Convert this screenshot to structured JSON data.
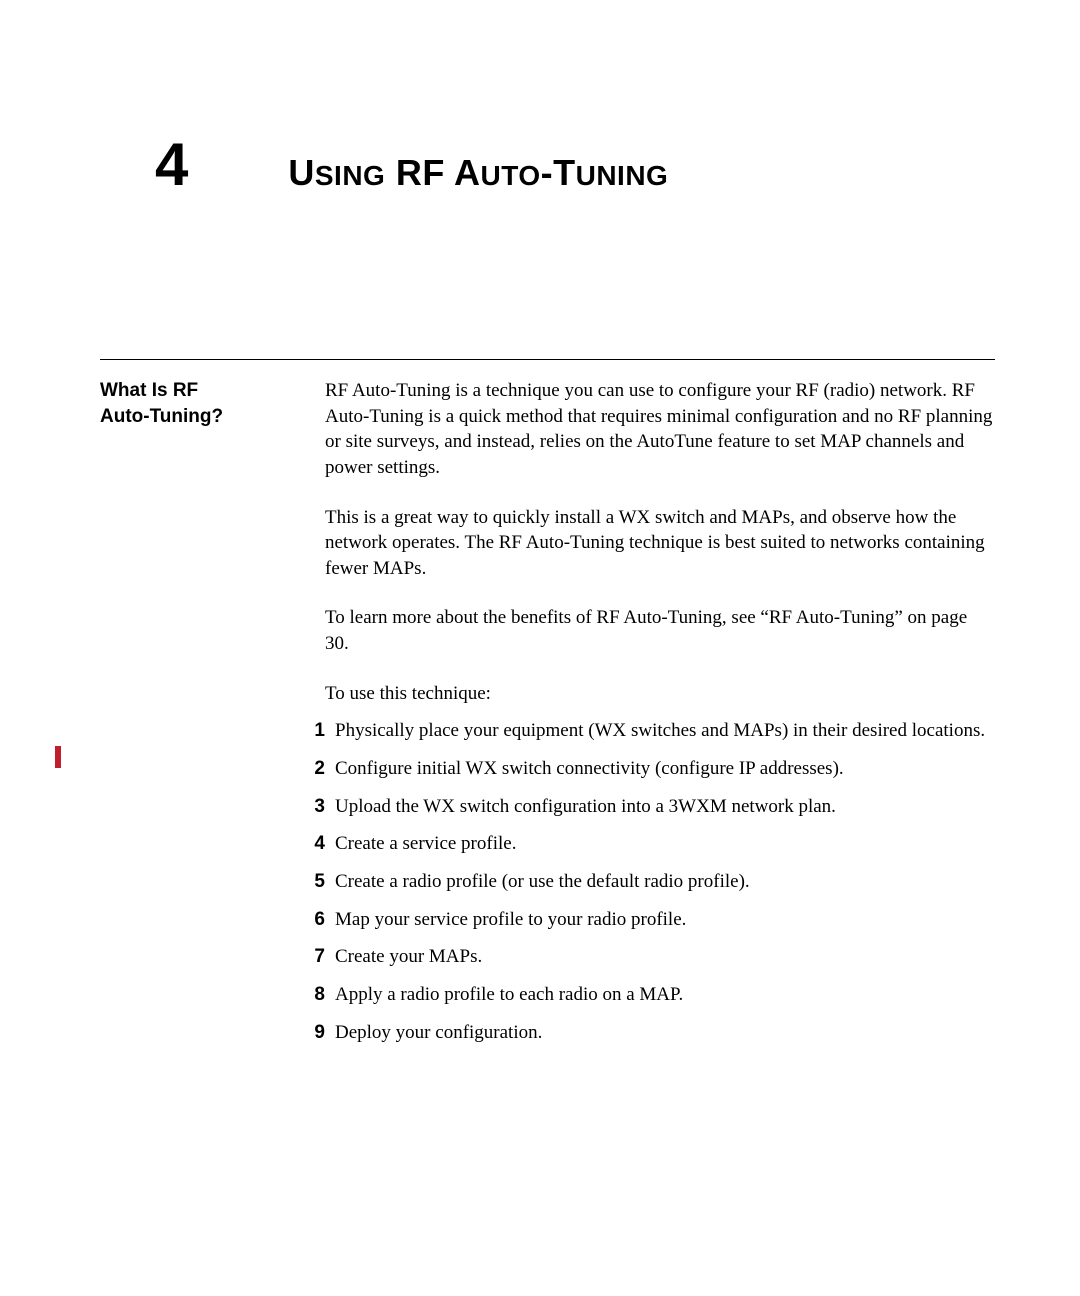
{
  "chapter": {
    "number": "4",
    "title_parts": [
      "U",
      "SING",
      " RF A",
      "UTO",
      "-T",
      "UNING"
    ]
  },
  "section": {
    "label_line1": "What Is RF",
    "label_line2": "Auto-Tuning?",
    "paragraphs": [
      "RF Auto-Tuning is a technique you can use to configure your RF (radio) network. RF Auto-Tuning is a quick method that requires minimal configuration and no RF planning or site surveys, and instead, relies on the AutoTune feature to set MAP channels and power settings.",
      "This is a great way to quickly install a WX switch and MAPs, and observe how the network operates. The RF Auto-Tuning technique is best suited to networks containing fewer MAPs.",
      "To learn more about the benefits of RF Auto-Tuning, see “RF Auto-Tuning” on page 30."
    ],
    "list_intro": "To use this technique:",
    "steps": [
      "Physically place your equipment (WX switches and MAPs) in their desired locations.",
      "Configure initial WX switch connectivity (configure IP addresses).",
      "Upload the WX switch configuration into a 3WXM network plan.",
      "Create a service profile.",
      "Create a radio profile (or use the default radio profile).",
      "Map your service profile to your radio profile.",
      "Create your MAPs.",
      "Apply a radio profile to each radio on a MAP.",
      "Deploy your configuration."
    ]
  },
  "colors": {
    "change_bar": "#be1e2d",
    "text": "#000000",
    "background": "#ffffff"
  }
}
